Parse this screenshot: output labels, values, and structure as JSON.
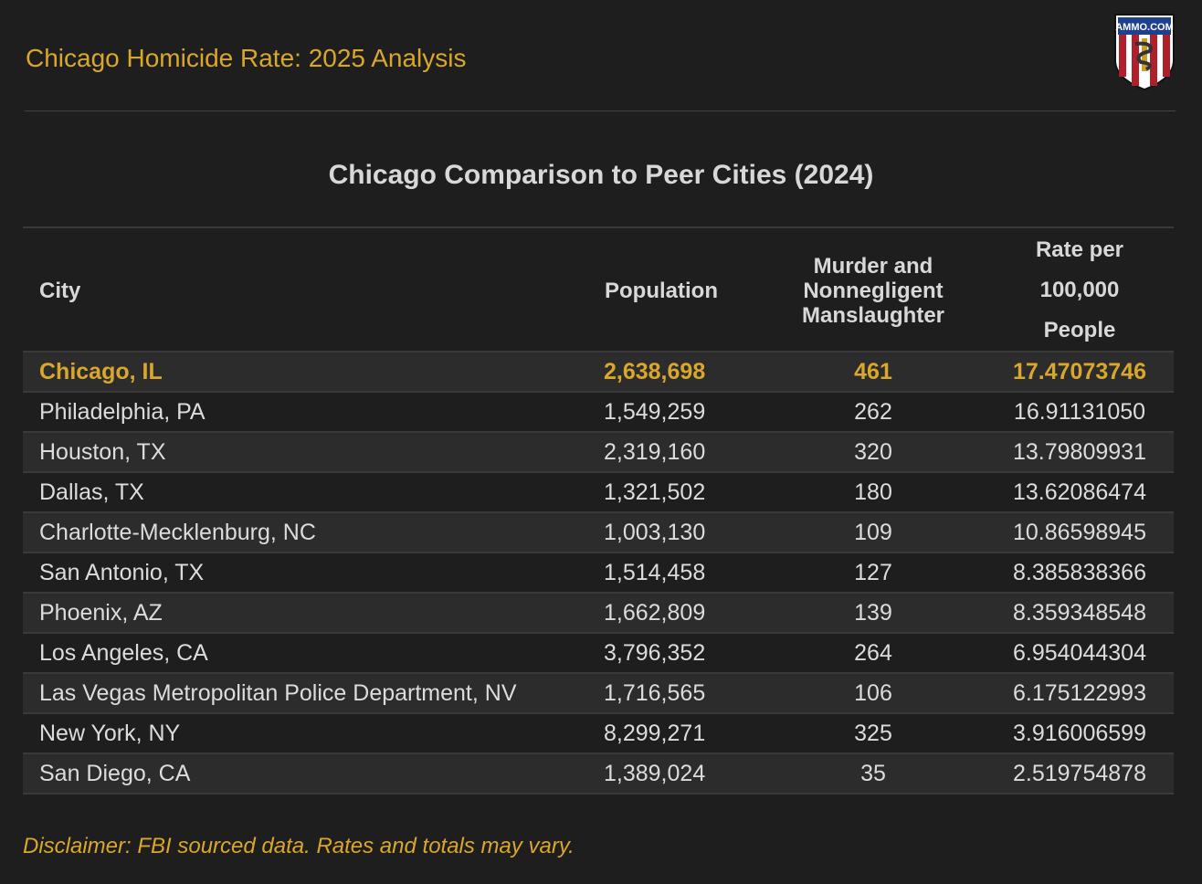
{
  "header": {
    "title": "Chicago Homicide Rate: 2025 Analysis",
    "logo_text": "AMMO.COM"
  },
  "chart_data": {
    "type": "table",
    "title": "Chicago Comparison to Peer Cities (2024)",
    "columns": [
      "City",
      "Population",
      "Murder and Nonnegligent Manslaughter",
      "Rate per 100,000 People"
    ],
    "rows": [
      [
        "Chicago, IL",
        "2,638,698",
        "461",
        "17.47073746"
      ],
      [
        "Philadelphia, PA",
        "1,549,259",
        "262",
        "16.91131050"
      ],
      [
        "Houston, TX",
        "2,319,160",
        "320",
        "13.79809931"
      ],
      [
        "Dallas, TX",
        "1,321,502",
        "180",
        "13.62086474"
      ],
      [
        "Charlotte-Mecklenburg, NC",
        "1,003,130",
        "109",
        "10.86598945"
      ],
      [
        "San Antonio, TX",
        "1,514,458",
        "127",
        "8.385838366"
      ],
      [
        "Phoenix, AZ",
        "1,662,809",
        "139",
        "8.359348548"
      ],
      [
        "Los Angeles, CA",
        "3,796,352",
        "264",
        "6.954044304"
      ],
      [
        "Las Vegas Metropolitan Police Department, NV",
        "1,716,565",
        "106",
        "6.175122993"
      ],
      [
        "New York, NY",
        "8,299,271",
        "325",
        "3.916006599"
      ],
      [
        "San Diego, CA",
        "1,389,024",
        "35",
        "2.519754878"
      ]
    ],
    "highlight_row": 0
  },
  "footer": {
    "disclaimer": "Disclaimer: FBI sourced data. Rates and totals may vary."
  },
  "colors": {
    "accent": "#d9a72b",
    "background": "#1e1e1e",
    "stripe": "#2c2c2c"
  }
}
